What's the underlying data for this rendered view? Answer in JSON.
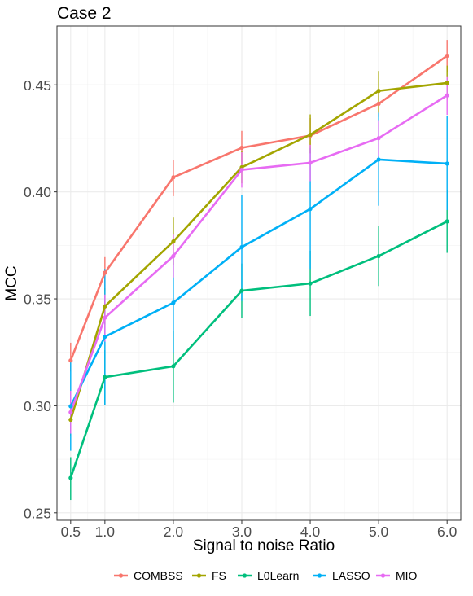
{
  "chart_data": {
    "type": "line",
    "title": "Case 2",
    "xlabel": "Signal to noise Ratio",
    "ylabel": "MCC",
    "x": [
      0.5,
      1.0,
      2.0,
      3.0,
      4.0,
      5.0,
      6.0
    ],
    "x_tick_labels": [
      "0.5",
      "1.0",
      "2.0",
      "3.0",
      "4.0",
      "5.0",
      "6.0"
    ],
    "y_ticks": [
      0.25,
      0.3,
      0.35,
      0.4,
      0.45
    ],
    "y_tick_labels": [
      "0.25",
      "0.30",
      "0.35",
      "0.40",
      "0.45"
    ],
    "xlim": [
      0.3,
      6.2
    ],
    "ylim": [
      0.2465,
      0.4775
    ],
    "grid": true,
    "legend_position": "bottom",
    "series": [
      {
        "name": "COMBSS",
        "color": "#F8766D",
        "values": [
          0.3212,
          0.3622,
          0.4068,
          0.4206,
          0.4263,
          0.4412,
          0.4636
        ],
        "lower": [
          0.316,
          0.354,
          0.398,
          0.413,
          0.418,
          0.435,
          0.456
        ],
        "upper": [
          0.3295,
          0.3695,
          0.415,
          0.4285,
          0.4345,
          0.447,
          0.471
        ]
      },
      {
        "name": "FS",
        "color": "#A3A500",
        "values": [
          0.2935,
          0.3465,
          0.3768,
          0.4115,
          0.4267,
          0.4472,
          0.4509
        ],
        "lower": [
          0.286,
          0.338,
          0.366,
          0.404,
          0.418,
          0.437,
          0.443
        ],
        "upper": [
          0.301,
          0.355,
          0.388,
          0.419,
          0.4362,
          0.4565,
          0.459
        ]
      },
      {
        "name": "L0Learn",
        "color": "#00BF7D",
        "values": [
          0.2663,
          0.3134,
          0.3185,
          0.3538,
          0.3572,
          0.37,
          0.3862
        ],
        "lower": [
          0.256,
          0.3005,
          0.3015,
          0.341,
          0.342,
          0.356,
          0.3715
        ],
        "upper": [
          0.276,
          0.326,
          0.335,
          0.3665,
          0.3725,
          0.384,
          0.401
        ]
      },
      {
        "name": "LASSO",
        "color": "#00B0F6",
        "values": [
          0.2998,
          0.3323,
          0.3482,
          0.3742,
          0.392,
          0.4151,
          0.4132
        ],
        "lower": [
          0.279,
          0.3005,
          0.325,
          0.349,
          0.364,
          0.3935,
          0.3915
        ],
        "upper": [
          0.321,
          0.364,
          0.3715,
          0.3985,
          0.4205,
          0.437,
          0.4355
        ]
      },
      {
        "name": "MIO",
        "color": "#E76BF3",
        "values": [
          0.297,
          0.3412,
          0.37,
          0.4103,
          0.4136,
          0.4251,
          0.4451
        ],
        "lower": [
          0.287,
          0.33,
          0.36,
          0.402,
          0.405,
          0.4165,
          0.436
        ],
        "upper": [
          0.307,
          0.352,
          0.38,
          0.4185,
          0.422,
          0.4335,
          0.454
        ]
      }
    ]
  }
}
